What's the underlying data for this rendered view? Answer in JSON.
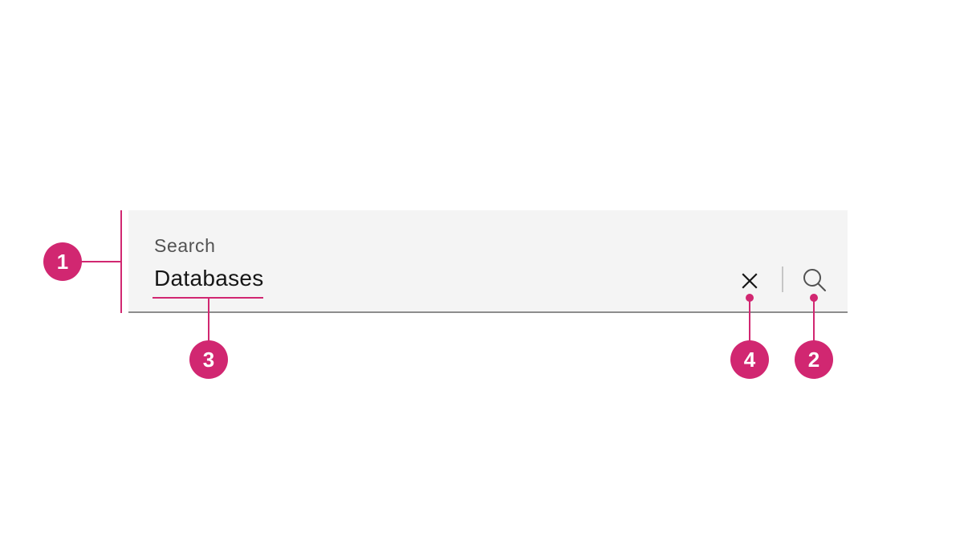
{
  "search": {
    "label": "Search",
    "value": "Databases"
  },
  "icons": {
    "clear": "close-icon",
    "search": "search-icon"
  },
  "callouts": {
    "one": "1",
    "two": "2",
    "three": "3",
    "four": "4"
  },
  "colors": {
    "callout": "#d12771",
    "field_background": "#f4f4f4",
    "field_border": "#8d8d8d",
    "label_text": "#525252",
    "value_text": "#161616"
  }
}
